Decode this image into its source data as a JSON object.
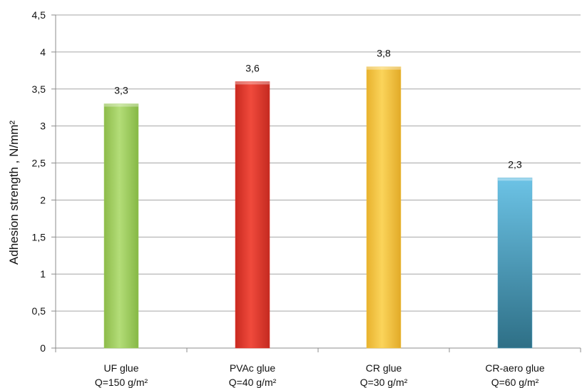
{
  "chart_data": {
    "type": "bar",
    "title": "",
    "xlabel": "",
    "ylabel": "Adhesion strength , N/mm²",
    "ylim": [
      0,
      4.5
    ],
    "ytick_step": 0.5,
    "ytick_labels": [
      "0",
      "0,5",
      "1",
      "1,5",
      "2",
      "2,5",
      "3",
      "3,5",
      "4",
      "4,5"
    ],
    "grid": true,
    "legend": "none",
    "categories": [
      {
        "line1": "UF glue",
        "line2": "Q=150 g/m²"
      },
      {
        "line1": "PVAc glue",
        "line2": "Q=40 g/m²"
      },
      {
        "line1": "CR glue",
        "line2": "Q=30 g/m²"
      },
      {
        "line1": "CR-aero glue",
        "line2": "Q=60 g/m²"
      }
    ],
    "values": [
      3.3,
      3.6,
      3.8,
      2.3
    ],
    "value_labels": [
      "3,3",
      "3,6",
      "3,8",
      "2,3"
    ],
    "colors": [
      "#9ccc5a",
      "#e2352a",
      "#f2c23e",
      "#5aaed0"
    ]
  }
}
